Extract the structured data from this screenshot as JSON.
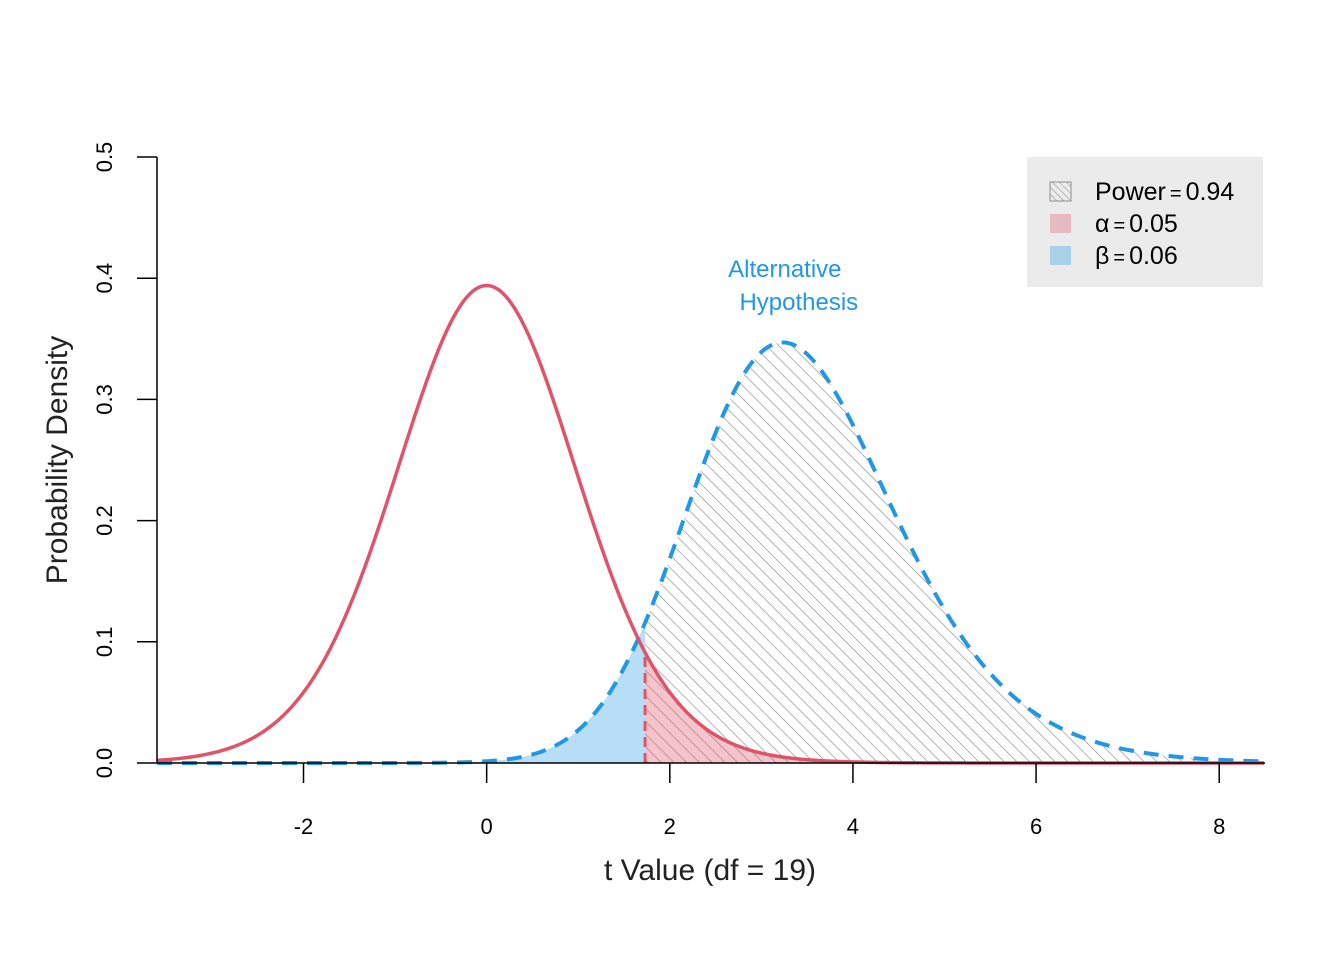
{
  "chart_data": {
    "type": "area",
    "xlabel": "t Value (df = 19)",
    "ylabel": "Probability Density",
    "xlim": [
      -3.6,
      8.5
    ],
    "ylim": [
      0,
      0.5
    ],
    "x_ticks": [
      -2,
      0,
      2,
      4,
      6,
      8
    ],
    "x_tick_labels": [
      "-2",
      "0",
      "2",
      "4",
      "6",
      "8"
    ],
    "y_ticks": [
      0,
      0.1,
      0.2,
      0.3,
      0.4,
      0.5
    ],
    "y_tick_labels": [
      "0.0",
      "0.1",
      "0.2",
      "0.3",
      "0.4",
      "0.5"
    ],
    "df": 19,
    "critical_value": 1.73,
    "null_curve": {
      "center": 0,
      "peak_density": 0.394,
      "line_style": "solid",
      "color": "#DF536B"
    },
    "alternative_curve": {
      "noncentrality": 3.35,
      "peak_x": 3.3,
      "peak_density": 0.347,
      "line_style": "dashed",
      "color": "#2297E6"
    },
    "shaded_regions": [
      {
        "name": "power",
        "from": 1.73,
        "to": 8.5,
        "under": "alternative",
        "fill": "hatched",
        "color": "#999999"
      },
      {
        "name": "alpha",
        "from": 1.73,
        "to": 8.5,
        "under": "null",
        "color": "#DF536B",
        "opacity": 0.35
      },
      {
        "name": "beta",
        "from": -3.6,
        "to": 1.73,
        "under": "alternative",
        "color": "#2297E6",
        "opacity": 0.32
      }
    ],
    "annotations": [
      {
        "lines": [
          "Alternative",
          "Hypothesis"
        ],
        "color": "#2297E6",
        "x": 3.3,
        "y": 0.39
      }
    ],
    "legend": {
      "position": "top-right",
      "background": "#EBEBEB",
      "entries": [
        {
          "symbol": "Power",
          "value": "0.94",
          "swatch": "hatched"
        },
        {
          "symbol": "α",
          "value": "0.05",
          "swatch": "#DF536B"
        },
        {
          "symbol": "β",
          "value": "0.06",
          "swatch": "#2297E6"
        }
      ]
    },
    "grid": false
  }
}
